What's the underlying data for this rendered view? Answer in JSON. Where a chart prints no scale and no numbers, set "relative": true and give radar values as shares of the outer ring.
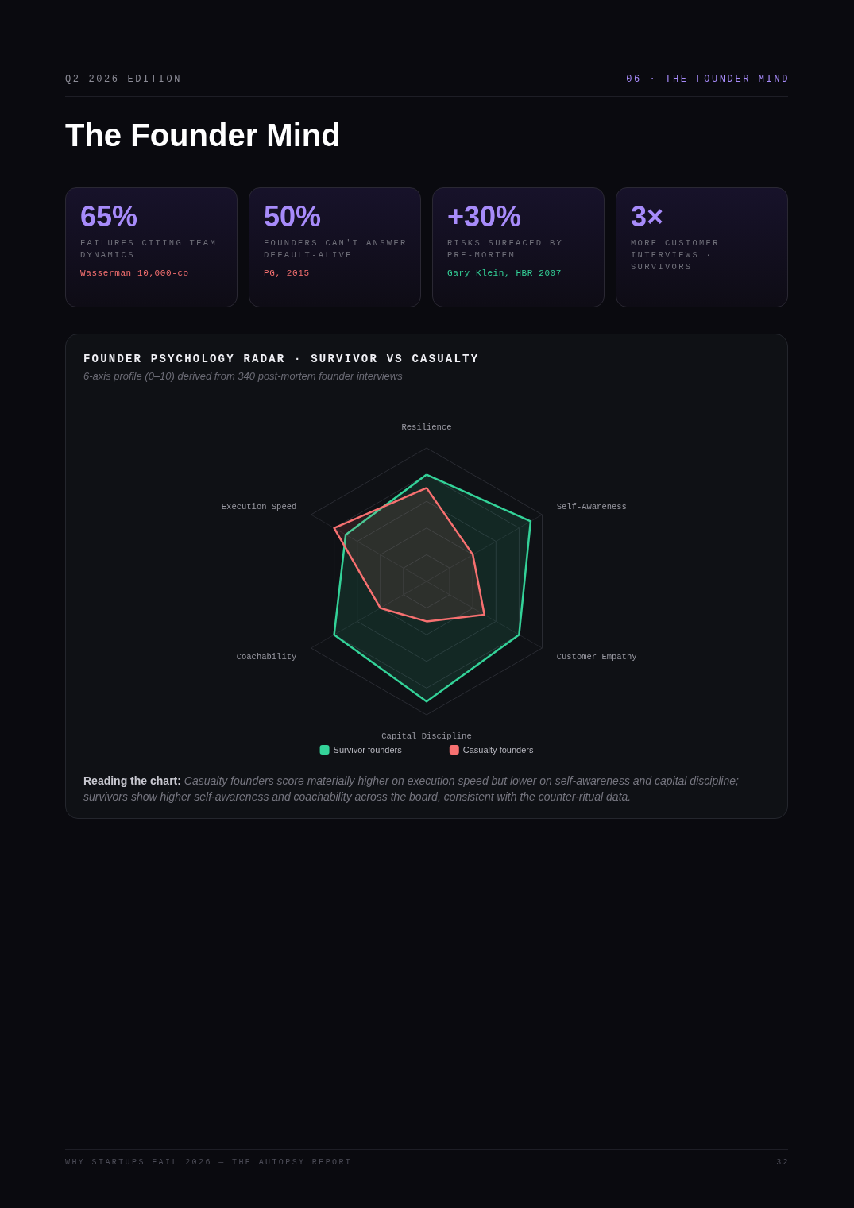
{
  "chart_data": [
    {
      "type": "other",
      "title": "The Founder Mind",
      "annotations": [
        "Q2 2026 EDITION",
        "06 · THE FOUNDER MIND"
      ]
    },
    {
      "type": "other",
      "title": "65%",
      "subtitle": "FAILURES CITING TEAM DYNAMICS",
      "annotations": [
        "Wasserman 10,000-co"
      ],
      "color": "#f87171"
    },
    {
      "type": "other",
      "title": "50%",
      "subtitle": "FOUNDERS CAN'T ANSWER DEFAULT-ALIVE",
      "annotations": [
        "PG, 2015"
      ],
      "color": "#f87171"
    },
    {
      "type": "other",
      "title": "+30%",
      "subtitle": "RISKS SURFACED BY PRE-MORTEM",
      "annotations": [
        "Gary Klein, HBR 2007"
      ],
      "color": "#34d399"
    },
    {
      "type": "other",
      "title": "3×",
      "subtitle": "MORE CUSTOMER INTERVIEWS · SURVIVORS"
    },
    {
      "type": "radar",
      "title": "FOUNDER PSYCHOLOGY RADAR · SURVIVOR VS CASUALTY",
      "subtitle": "6-axis profile (0–10) derived from 340 post-mortem founder interviews",
      "categories": [
        "Resilience",
        "Self-Awareness",
        "Customer Empathy",
        "Capital Discipline",
        "Coachability",
        "Execution Speed"
      ],
      "series": [
        {
          "name": "Survivor founders",
          "color": "#34d399",
          "values": [
            0.8,
            0.9,
            0.8,
            0.9,
            0.8,
            0.7
          ]
        },
        {
          "name": "Casualty founders",
          "color": "#f87171",
          "values": [
            0.7,
            0.4,
            0.5,
            0.3,
            0.4,
            0.8
          ]
        }
      ],
      "relative": true,
      "grid": true,
      "marker": "none",
      "legend": "bottom",
      "annotations": [
        "Reading the chart:",
        "Casualty founders score materially higher on execution speed but lower on self-awareness and capital discipline; survivors show higher self-awareness and coachability across the board, consistent with the counter-ritual data."
      ]
    },
    {
      "type": "other",
      "annotations": [
        "WHY STARTUPS FAIL 2026 — THE AUTOPSY REPORT",
        "32"
      ]
    }
  ]
}
